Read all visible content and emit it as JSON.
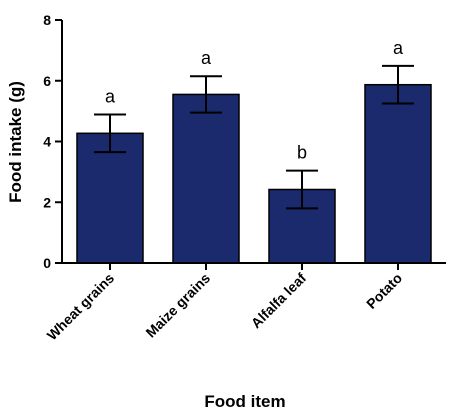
{
  "chart_data": {
    "type": "bar",
    "categories": [
      "Wheat grains",
      "Maize grains",
      "Alfalfa leaf",
      "Potato"
    ],
    "values": [
      4.27,
      5.55,
      2.42,
      5.87
    ],
    "errors": [
      0.62,
      0.6,
      0.62,
      0.62
    ],
    "significance": [
      "a",
      "a",
      "b",
      "a"
    ],
    "xlabel": "Food item",
    "ylabel": "Food intake (g)",
    "ylim": [
      0,
      8
    ],
    "yticks": [
      0,
      2,
      4,
      6,
      8
    ],
    "bar_color": "#1a2a6c",
    "grid": false,
    "legend": "none"
  }
}
